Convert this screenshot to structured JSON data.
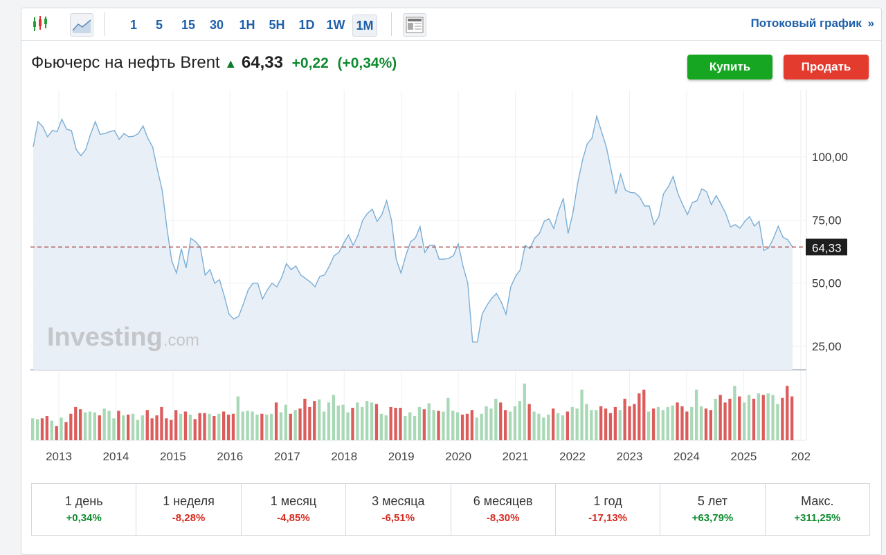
{
  "toolbar": {
    "chart_type_icons": [
      "candlestick-icon",
      "area-chart-icon"
    ],
    "intervals": [
      "1",
      "5",
      "15",
      "30",
      "1H",
      "5H",
      "1D",
      "1W",
      "1M"
    ],
    "active_interval": "1M",
    "layout_icon": "layout-icon",
    "streaming_link": "Потоковый график",
    "streaming_chevron": "»"
  },
  "header": {
    "name": "Фьючерс на нефть Brent",
    "arrow": "up-arrow-icon",
    "price": "64,33",
    "change": "+0,22",
    "change_pct": "(+0,34%)",
    "buy_label": "Купить",
    "sell_label": "Продать"
  },
  "colors": {
    "up": "#0e8a2f",
    "down": "#d42b20",
    "line": "#7aaed6",
    "area": "#e9eff6",
    "vol_up": "#a8d8b5",
    "vol_down": "#dc5c5c",
    "buy": "#17a621",
    "sell": "#e33b2e"
  },
  "watermark": {
    "brand": "Investing",
    ".com": ".com"
  },
  "chart_data": {
    "type": "area",
    "x_start": "2012-08",
    "x_end": "2025-10",
    "interval": "1M",
    "y_ticks": [
      "100,00",
      "75,00",
      "50,00",
      "25,00"
    ],
    "y_tick_values": [
      100,
      75,
      50,
      25
    ],
    "ylim": [
      15.7,
      126.6
    ],
    "x_ticks": [
      "2013",
      "2014",
      "2015",
      "2016",
      "2017",
      "2018",
      "2019",
      "2020",
      "2021",
      "2022",
      "2023",
      "2024",
      "2025",
      "202"
    ],
    "current_price_label": "64,33",
    "current_price": 64.33,
    "price": [
      104,
      114,
      112,
      108,
      110.5,
      110,
      115,
      111,
      110.5,
      103,
      100.5,
      103,
      109,
      114,
      109,
      109.3,
      110,
      110.5,
      107,
      109.3,
      108,
      108.2,
      109.3,
      112.3,
      107.4,
      104,
      95,
      86.9,
      71.8,
      58.8,
      54,
      63.7,
      56,
      67.8,
      66.4,
      64.2,
      53.2,
      55.4,
      50,
      51.4,
      45,
      37.7,
      35.8,
      36.8,
      41.8,
      47.3,
      50,
      50,
      43.7,
      47.3,
      50,
      48.6,
      52.2,
      57.7,
      55.4,
      56.8,
      53.3,
      51.9,
      50.5,
      48.6,
      52.7,
      53.3,
      56.8,
      60.9,
      62.2,
      65.8,
      69.1,
      65,
      69.1,
      75,
      77.7,
      79.3,
      74.5,
      77.2,
      82.7,
      75,
      59.5,
      54,
      60.9,
      66.4,
      67.8,
      72.4,
      62.2,
      65,
      65,
      59.5,
      59.5,
      59.8,
      60.9,
      65.6,
      56.8,
      50,
      26.7,
      26.7,
      37.7,
      41.2,
      44,
      45.9,
      42.6,
      37.7,
      48.6,
      52.7,
      55.4,
      65,
      63.7,
      67.8,
      69.7,
      74.5,
      75.5,
      71.7,
      78.6,
      83.6,
      69.7,
      77.7,
      89.5,
      98.6,
      105.2,
      107.4,
      116.2,
      110.1,
      104.1,
      95,
      85.5,
      93.2,
      86.9,
      86,
      85.8,
      84.1,
      80.6,
      80.6,
      73.2,
      76.4,
      85.5,
      88.2,
      92.3,
      85.5,
      81.1,
      77.2,
      81.9,
      82.7,
      87.4,
      86.3,
      81.1,
      84.7,
      81.4,
      77.7,
      72.3,
      73.2,
      71.8,
      74.5,
      76.4,
      72.6,
      74.5,
      63,
      64,
      67.8,
      72.6,
      68.2,
      67.2,
      64.33
    ],
    "volume_relative": [
      29,
      28,
      29,
      32,
      26,
      19,
      30,
      24,
      35,
      44,
      41,
      37,
      38,
      37,
      33,
      42,
      39,
      29,
      39,
      33,
      34,
      35,
      27,
      33,
      40,
      29,
      33,
      44,
      29,
      27,
      40,
      35,
      38,
      34,
      28,
      36,
      36,
      35,
      32,
      35,
      38,
      34,
      35,
      58,
      38,
      39,
      38,
      34,
      35,
      34,
      35,
      50,
      37,
      47,
      35,
      40,
      42,
      55,
      44,
      52,
      54,
      38,
      50,
      60,
      46,
      47,
      37,
      43,
      50,
      44,
      52,
      50,
      48,
      35,
      33,
      44,
      43,
      43,
      32,
      37,
      32,
      44,
      41,
      49,
      40,
      39,
      38,
      56,
      39,
      37,
      34,
      35,
      40,
      30,
      35,
      45,
      42,
      55,
      50,
      40,
      38,
      45,
      52,
      75,
      48,
      38,
      35,
      30,
      34,
      42,
      36,
      33,
      38,
      44,
      42,
      67,
      48,
      40,
      40,
      45,
      42,
      36,
      44,
      40,
      55,
      45,
      48,
      62,
      67,
      38,
      42,
      44,
      40,
      44,
      46,
      50,
      45,
      38,
      44,
      67,
      45,
      42,
      40,
      55,
      60,
      50,
      55,
      72,
      58,
      50,
      60,
      55,
      62,
      60,
      62,
      60,
      48,
      56,
      72,
      58
    ],
    "xlabel": "",
    "ylabel": ""
  },
  "performance": [
    {
      "label": "1 день",
      "value": "+0,34%",
      "dir": "pos"
    },
    {
      "label": "1 неделя",
      "value": "-8,28%",
      "dir": "neg"
    },
    {
      "label": "1 месяц",
      "value": "-4,85%",
      "dir": "neg"
    },
    {
      "label": "3 месяца",
      "value": "-6,51%",
      "dir": "neg"
    },
    {
      "label": "6 месяцев",
      "value": "-8,30%",
      "dir": "neg"
    },
    {
      "label": "1 год",
      "value": "-17,13%",
      "dir": "neg"
    },
    {
      "label": "5 лет",
      "value": "+63,79%",
      "dir": "pos"
    },
    {
      "label": "Макс.",
      "value": "+311,25%",
      "dir": "pos"
    }
  ]
}
